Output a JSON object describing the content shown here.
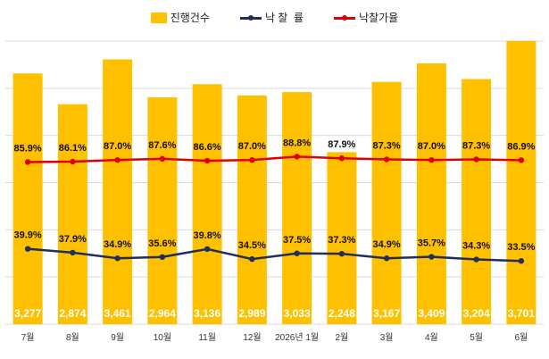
{
  "chart_data": {
    "type": "bar",
    "categories": [
      "7월",
      "8월",
      "9월",
      "10월",
      "11월",
      "12월",
      "2026년 1월",
      "2월",
      "3월",
      "4월",
      "5월",
      "6월"
    ],
    "series": [
      {
        "name": "진행건수",
        "type": "bar",
        "color": "#FFC000",
        "values": [
          3277,
          2874,
          3461,
          2964,
          3136,
          2989,
          3033,
          2248,
          3167,
          3409,
          3204,
          3701
        ],
        "labels": [
          "3,277",
          "2,874",
          "3,461",
          "2,964",
          "3,136",
          "2,989",
          "3,033",
          "2,248",
          "3,167",
          "3,409",
          "3,204",
          "3,701"
        ]
      },
      {
        "name": "낙 찰  률",
        "type": "line",
        "color": "#1F2F5A",
        "values": [
          39.9,
          37.9,
          34.9,
          35.6,
          39.8,
          34.5,
          37.5,
          37.3,
          34.9,
          35.7,
          34.3,
          33.5
        ],
        "labels": [
          "39.9%",
          "37.9%",
          "34.9%",
          "35.6%",
          "39.8%",
          "34.5%",
          "37.5%",
          "37.3%",
          "34.9%",
          "35.7%",
          "34.3%",
          "33.5%"
        ]
      },
      {
        "name": "낙찰가율",
        "type": "line",
        "color": "#E00000",
        "values": [
          85.9,
          86.1,
          87.0,
          87.6,
          86.6,
          87.0,
          88.8,
          87.9,
          87.3,
          87.0,
          87.3,
          86.9
        ],
        "labels": [
          "85.9%",
          "86.1%",
          "87.0%",
          "87.6%",
          "86.6%",
          "87.0%",
          "88.8%",
          "87.9%",
          "87.3%",
          "87.0%",
          "87.3%",
          "86.9%"
        ]
      }
    ],
    "grid": true,
    "legend_position": "top-center",
    "ylim_bars": [
      0,
      3700
    ],
    "ylim_rates": [
      0,
      150
    ]
  }
}
